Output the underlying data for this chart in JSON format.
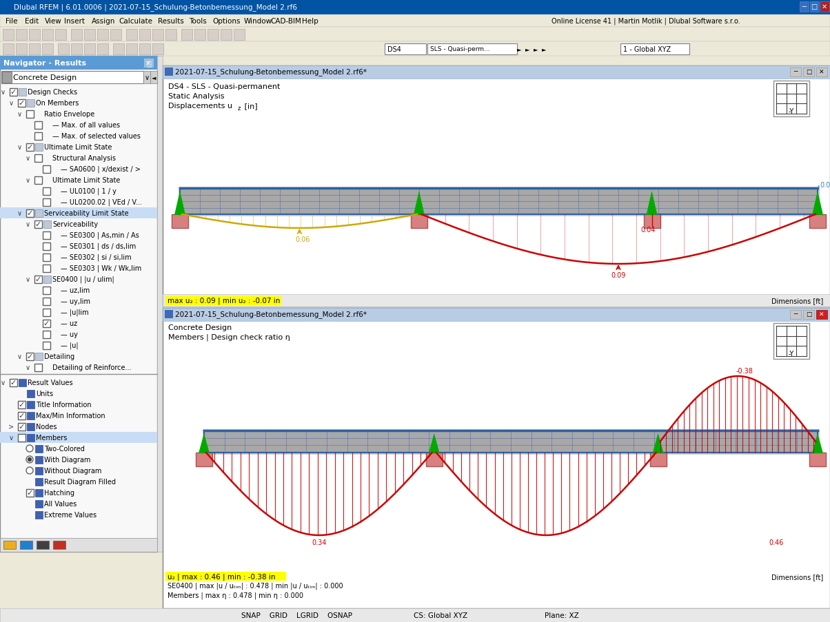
{
  "app_title": "Dlubal RFEM | 6.01.0006 | 2021-07-15_Schulung-Betonbemessung_Model 2.rf6",
  "menu_items": [
    "File",
    "Edit",
    "View",
    "Insert",
    "Assign",
    "Calculate",
    "Results",
    "Tools",
    "Options",
    "Window",
    "CAD-BIM",
    "Help"
  ],
  "right_info": "Online License 41 | Martin Motlik | Dlubal Software s.r.o.",
  "navigator_title": "Navigator - Results",
  "nav_combo": "Concrete Design",
  "win1_title": "2021-07-15_Schulung-Betonbemessung_Model 2.rf6*",
  "win1_line1": "DS4 - SLS - Quasi-permanent",
  "win1_line2": "Static Analysis",
  "win1_line3": "Displacements u",
  "win1_line3_sub": "z",
  "win1_line3_end": " [in]",
  "win1_status": "max u₂ : 0.09 | min u₂ : -0.07 in",
  "win1_dim": "Dimensions [ft]",
  "win2_title": "2021-07-15_Schulung-Betonbemessung_Model 2.rf6*",
  "win2_line1": "Concrete Design",
  "win2_line2": "Members | Design check ratio η",
  "win2_status1": "u₂ | max : 0.46 | min : -0.38 in",
  "win2_status2": "SE0400 | max |u / uₜᵢₘ| : 0.478 | min |u / uₜᵢₘ| : 0.000",
  "win2_status3": "Members | max η : 0.478 | min η : 0.000",
  "win2_dim": "Dimensions [ft]",
  "statusbar": "SNAP    GRID    LGRID    OSNAP",
  "statusbar_cs": "CS: Global XYZ",
  "statusbar_plane": "Plane: XZ",
  "c_titlebar_blue": "#0054a3",
  "c_win_titlebar": "#b8cce4",
  "c_nav_title": "#5b9bd5",
  "c_nav_bg": "#f8f8f8",
  "c_app_bg": "#ece9d8",
  "c_beam": "#a8a8a8",
  "c_beam_border": "#3060a0",
  "c_beam_grid": "#5070a8",
  "c_support": "#d88080",
  "c_support_border": "#b05050",
  "c_triangle": "#00aa00",
  "c_yellow": "#ccaa00",
  "c_red": "#cc0000",
  "c_status_hl": "#ffff00",
  "c_menu_bg": "#ece9d8",
  "c_toolbar_bg": "#ece9d8",
  "c_white": "#ffffff",
  "c_gray_border": "#808080"
}
